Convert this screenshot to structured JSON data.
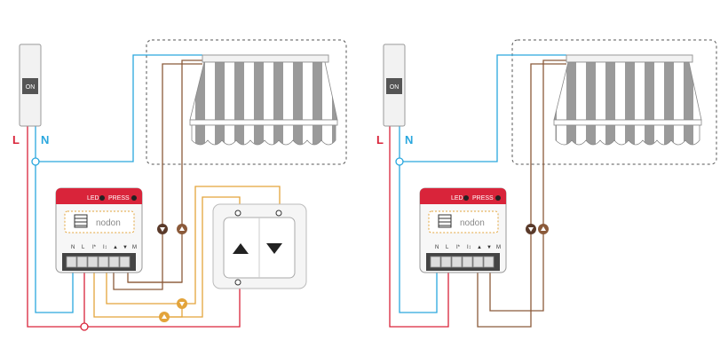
{
  "breaker_label": "ON",
  "line_label": "L",
  "neutral_label": "N",
  "module": {
    "led_label": "LED",
    "press_label": "PRESS",
    "brand": "nodon",
    "terminals": [
      "N",
      "L",
      "I*",
      "I↕",
      "▲",
      "▼",
      "M"
    ]
  },
  "colors": {
    "line": "#d9243a",
    "neutral": "#2aa7de",
    "up": "#e3a43b",
    "motor": "#8b5a3a",
    "awning_stripe": "#9a9a9a",
    "module_red": "#d9243a"
  },
  "icons": [
    "breaker-icon",
    "awning-icon",
    "switch-icon",
    "blinds-icon",
    "motor-up-icon",
    "motor-down-icon"
  ]
}
